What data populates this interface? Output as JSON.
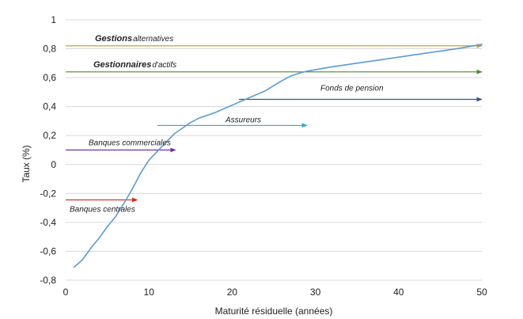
{
  "chart_data": {
    "type": "line",
    "title": "",
    "xlabel": "Maturité résiduelle (années)",
    "ylabel": "Taux (%)",
    "xlim": [
      0,
      50
    ],
    "ylim": [
      -0.8,
      1
    ],
    "x_ticks": [
      "0",
      "10",
      "20",
      "30",
      "40",
      "50"
    ],
    "y_ticks": [
      "-0,8",
      "-0,6",
      "-0,4",
      "-0,2",
      "0",
      "0,2",
      "0,4",
      "0,6",
      "0,8",
      "1"
    ],
    "grid": "horizontal",
    "series": [
      {
        "color": "#5b9bd5",
        "x": [
          1,
          2,
          3,
          4,
          5,
          6,
          7,
          8,
          9,
          10,
          11,
          12,
          13,
          14,
          15,
          16,
          18,
          20,
          22,
          24,
          26,
          27,
          28,
          29,
          30,
          32,
          35,
          38,
          41,
          44,
          47,
          50
        ],
        "y": [
          -0.71,
          -0.66,
          -0.58,
          -0.51,
          -0.43,
          -0.36,
          -0.27,
          -0.17,
          -0.06,
          0.03,
          0.09,
          0.15,
          0.21,
          0.25,
          0.29,
          0.32,
          0.36,
          0.41,
          0.46,
          0.51,
          0.58,
          0.61,
          0.63,
          0.645,
          0.655,
          0.675,
          0.7,
          0.725,
          0.75,
          0.775,
          0.8,
          0.83
        ]
      }
    ],
    "annotations": [
      {
        "label_main": "Gestions",
        "label_sub": "alternatives",
        "x_start": 0,
        "x_end": 50,
        "y": 0.82,
        "color": "#c0a040"
      },
      {
        "label_main": "Gestionnaires",
        "label_sub": "d'actifs",
        "x_start": 0,
        "x_end": 50,
        "y": 0.64,
        "color": "#4e8a2e"
      },
      {
        "label_main": "",
        "label_sub": "Fonds de pension",
        "x_start": 20.8,
        "x_end": 50,
        "y": 0.45,
        "color": "#2f5597"
      },
      {
        "label_main": "",
        "label_sub": "Assureurs",
        "x_start": 11,
        "x_end": 29,
        "y": 0.27,
        "color": "#2eaadc"
      },
      {
        "label_main": "",
        "label_sub": "Banques commerciales",
        "x_start": 0,
        "x_end": 13.2,
        "y": 0.1,
        "color": "#7030a0"
      },
      {
        "label_main": "",
        "label_sub": "Banques centrales",
        "x_start": 0,
        "x_end": 8.6,
        "y": -0.245,
        "color": "#e02020"
      }
    ]
  }
}
